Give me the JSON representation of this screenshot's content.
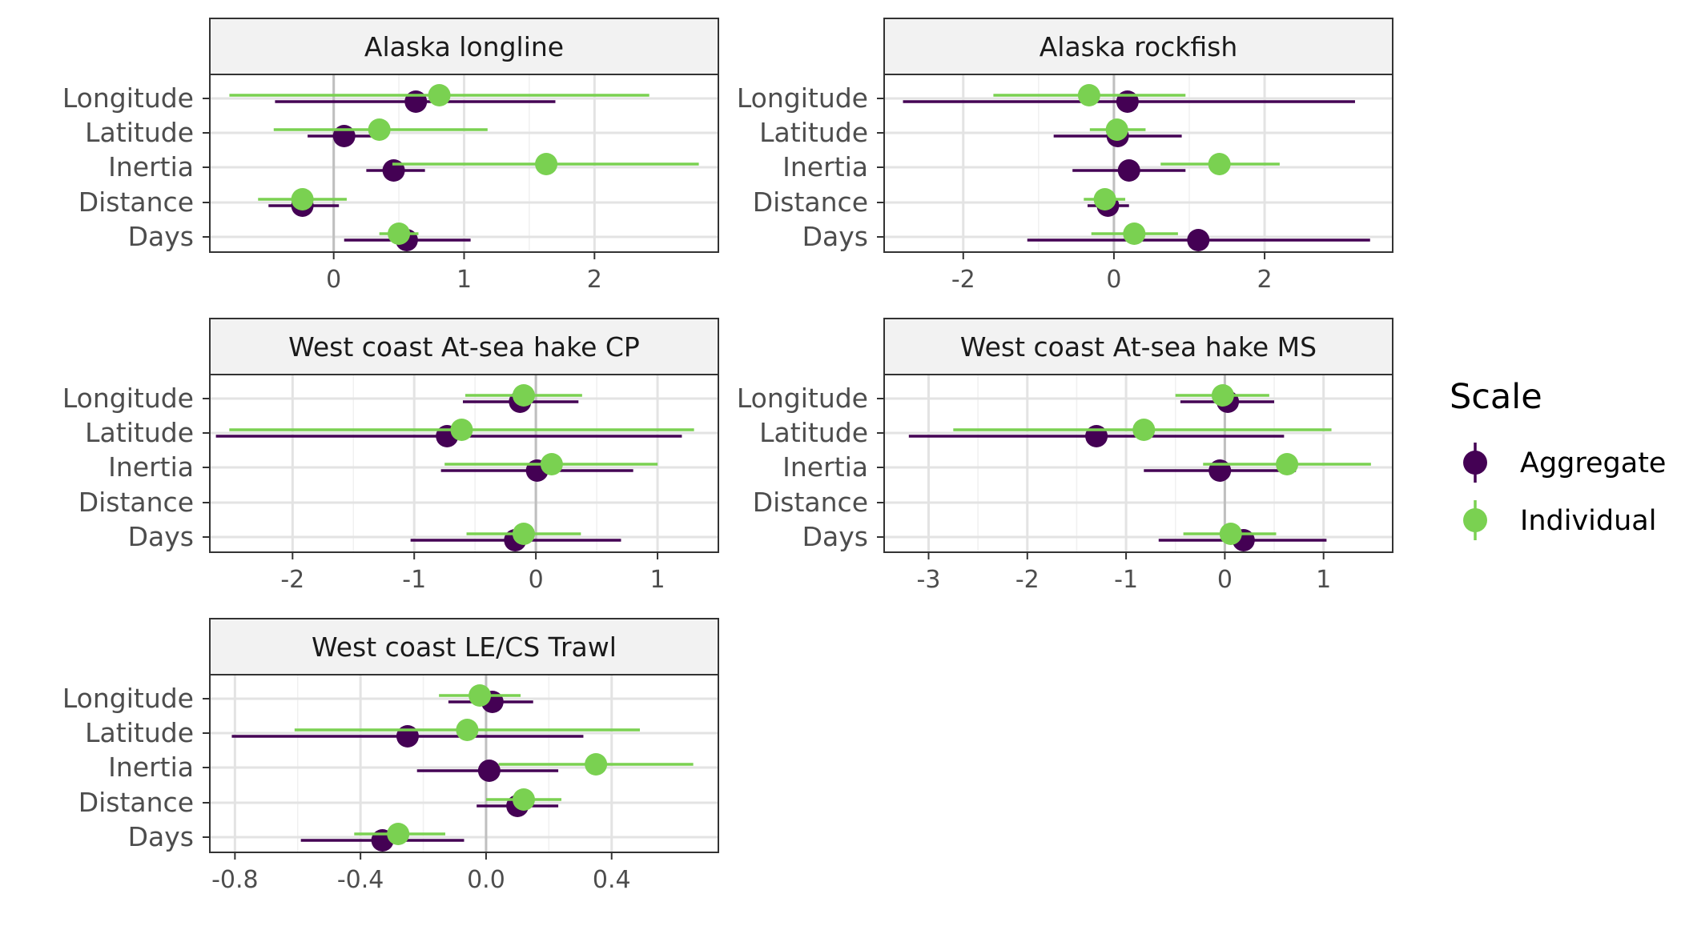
{
  "chart_data": {
    "type": "scatter",
    "subtype": "pointrange-faceted",
    "categories": [
      "Longitude",
      "Latitude",
      "Inertia",
      "Distance",
      "Days"
    ],
    "legend": {
      "title": "Scale",
      "position": "right",
      "items": [
        {
          "name": "Aggregate",
          "color": "#440154"
        },
        {
          "name": "Individual",
          "color": "#7AD151"
        }
      ]
    },
    "grid": true,
    "panels": [
      {
        "title": "Alaska longline",
        "xlim": [
          -0.95,
          2.95
        ],
        "xticks": [
          0,
          1,
          2
        ],
        "xtick_labels": [
          "0",
          "1",
          "2"
        ],
        "series": [
          {
            "name": "Aggregate",
            "points": [
              {
                "cat": "Longitude",
                "est": 0.63,
                "lo": -0.45,
                "hi": 1.7
              },
              {
                "cat": "Latitude",
                "est": 0.08,
                "lo": -0.2,
                "hi": 0.35
              },
              {
                "cat": "Inertia",
                "est": 0.46,
                "lo": 0.25,
                "hi": 0.7
              },
              {
                "cat": "Distance",
                "est": -0.24,
                "lo": -0.5,
                "hi": 0.04
              },
              {
                "cat": "Days",
                "est": 0.56,
                "lo": 0.08,
                "hi": 1.05
              }
            ]
          },
          {
            "name": "Individual",
            "points": [
              {
                "cat": "Longitude",
                "est": 0.81,
                "lo": -0.8,
                "hi": 2.42
              },
              {
                "cat": "Latitude",
                "est": 0.35,
                "lo": -0.46,
                "hi": 1.18
              },
              {
                "cat": "Inertia",
                "est": 1.63,
                "lo": 0.45,
                "hi": 2.8
              },
              {
                "cat": "Distance",
                "est": -0.24,
                "lo": -0.58,
                "hi": 0.1
              },
              {
                "cat": "Days",
                "est": 0.5,
                "lo": 0.35,
                "hi": 0.65
              }
            ]
          }
        ]
      },
      {
        "title": "Alaska rockfish",
        "xlim": [
          -3.05,
          3.7
        ],
        "xticks": [
          -2,
          0,
          2
        ],
        "xtick_labels": [
          "-2",
          "0",
          "2"
        ],
        "series": [
          {
            "name": "Aggregate",
            "points": [
              {
                "cat": "Longitude",
                "est": 0.18,
                "lo": -2.8,
                "hi": 3.2
              },
              {
                "cat": "Latitude",
                "est": 0.05,
                "lo": -0.8,
                "hi": 0.9
              },
              {
                "cat": "Inertia",
                "est": 0.2,
                "lo": -0.55,
                "hi": 0.95
              },
              {
                "cat": "Distance",
                "est": -0.08,
                "lo": -0.35,
                "hi": 0.2
              },
              {
                "cat": "Days",
                "est": 1.12,
                "lo": -1.15,
                "hi": 3.4
              }
            ]
          },
          {
            "name": "Individual",
            "points": [
              {
                "cat": "Longitude",
                "est": -0.33,
                "lo": -1.6,
                "hi": 0.95
              },
              {
                "cat": "Latitude",
                "est": 0.04,
                "lo": -0.32,
                "hi": 0.42
              },
              {
                "cat": "Inertia",
                "est": 1.4,
                "lo": 0.62,
                "hi": 2.2
              },
              {
                "cat": "Distance",
                "est": -0.12,
                "lo": -0.4,
                "hi": 0.15
              },
              {
                "cat": "Days",
                "est": 0.27,
                "lo": -0.3,
                "hi": 0.85
              }
            ]
          }
        ]
      },
      {
        "title": "West coast At-sea hake CP",
        "xlim": [
          -2.68,
          1.5
        ],
        "xticks": [
          -2,
          -1,
          0,
          1
        ],
        "xtick_labels": [
          "-2",
          "-1",
          "0",
          "1"
        ],
        "series": [
          {
            "name": "Aggregate",
            "points": [
              {
                "cat": "Longitude",
                "est": -0.13,
                "lo": -0.6,
                "hi": 0.35
              },
              {
                "cat": "Latitude",
                "est": -0.73,
                "lo": -2.63,
                "hi": 1.2
              },
              {
                "cat": "Inertia",
                "est": 0.01,
                "lo": -0.78,
                "hi": 0.8
              },
              {
                "cat": "Days",
                "est": -0.17,
                "lo": -1.03,
                "hi": 0.7
              }
            ]
          },
          {
            "name": "Individual",
            "points": [
              {
                "cat": "Longitude",
                "est": -0.1,
                "lo": -0.58,
                "hi": 0.38
              },
              {
                "cat": "Latitude",
                "est": -0.61,
                "lo": -2.52,
                "hi": 1.3
              },
              {
                "cat": "Inertia",
                "est": 0.13,
                "lo": -0.75,
                "hi": 1.0
              },
              {
                "cat": "Days",
                "est": -0.1,
                "lo": -0.57,
                "hi": 0.37
              }
            ]
          }
        ]
      },
      {
        "title": "West coast At-sea hake MS",
        "xlim": [
          -3.45,
          1.7
        ],
        "xticks": [
          -3,
          -2,
          -1,
          0,
          1
        ],
        "xtick_labels": [
          "-3",
          "-2",
          "-1",
          "0",
          "1"
        ],
        "series": [
          {
            "name": "Aggregate",
            "points": [
              {
                "cat": "Longitude",
                "est": 0.03,
                "lo": -0.45,
                "hi": 0.5
              },
              {
                "cat": "Latitude",
                "est": -1.3,
                "lo": -3.2,
                "hi": 0.6
              },
              {
                "cat": "Inertia",
                "est": -0.05,
                "lo": -0.82,
                "hi": 0.72
              },
              {
                "cat": "Days",
                "est": 0.19,
                "lo": -0.67,
                "hi": 1.03
              }
            ]
          },
          {
            "name": "Individual",
            "points": [
              {
                "cat": "Longitude",
                "est": -0.02,
                "lo": -0.5,
                "hi": 0.45
              },
              {
                "cat": "Latitude",
                "est": -0.82,
                "lo": -2.75,
                "hi": 1.08
              },
              {
                "cat": "Inertia",
                "est": 0.63,
                "lo": -0.22,
                "hi": 1.48
              },
              {
                "cat": "Days",
                "est": 0.06,
                "lo": -0.42,
                "hi": 0.52
              }
            ]
          }
        ]
      },
      {
        "title": "West coast LE/CS Trawl",
        "xlim": [
          -0.88,
          0.74
        ],
        "xticks": [
          -0.8,
          -0.4,
          0.0,
          0.4
        ],
        "xtick_labels": [
          "-0.8",
          "-0.4",
          "0.0",
          "0.4"
        ],
        "series": [
          {
            "name": "Aggregate",
            "points": [
              {
                "cat": "Longitude",
                "est": 0.02,
                "lo": -0.12,
                "hi": 0.15
              },
              {
                "cat": "Latitude",
                "est": -0.25,
                "lo": -0.81,
                "hi": 0.31
              },
              {
                "cat": "Inertia",
                "est": 0.01,
                "lo": -0.22,
                "hi": 0.23
              },
              {
                "cat": "Distance",
                "est": 0.1,
                "lo": -0.03,
                "hi": 0.23
              },
              {
                "cat": "Days",
                "est": -0.33,
                "lo": -0.59,
                "hi": -0.07
              }
            ]
          },
          {
            "name": "Individual",
            "points": [
              {
                "cat": "Longitude",
                "est": -0.02,
                "lo": -0.15,
                "hi": 0.11
              },
              {
                "cat": "Latitude",
                "est": -0.06,
                "lo": -0.61,
                "hi": 0.49
              },
              {
                "cat": "Inertia",
                "est": 0.35,
                "lo": 0.04,
                "hi": 0.66
              },
              {
                "cat": "Distance",
                "est": 0.12,
                "lo": 0.0,
                "hi": 0.24
              },
              {
                "cat": "Days",
                "est": -0.28,
                "lo": -0.42,
                "hi": -0.13
              }
            ]
          }
        ]
      }
    ]
  }
}
